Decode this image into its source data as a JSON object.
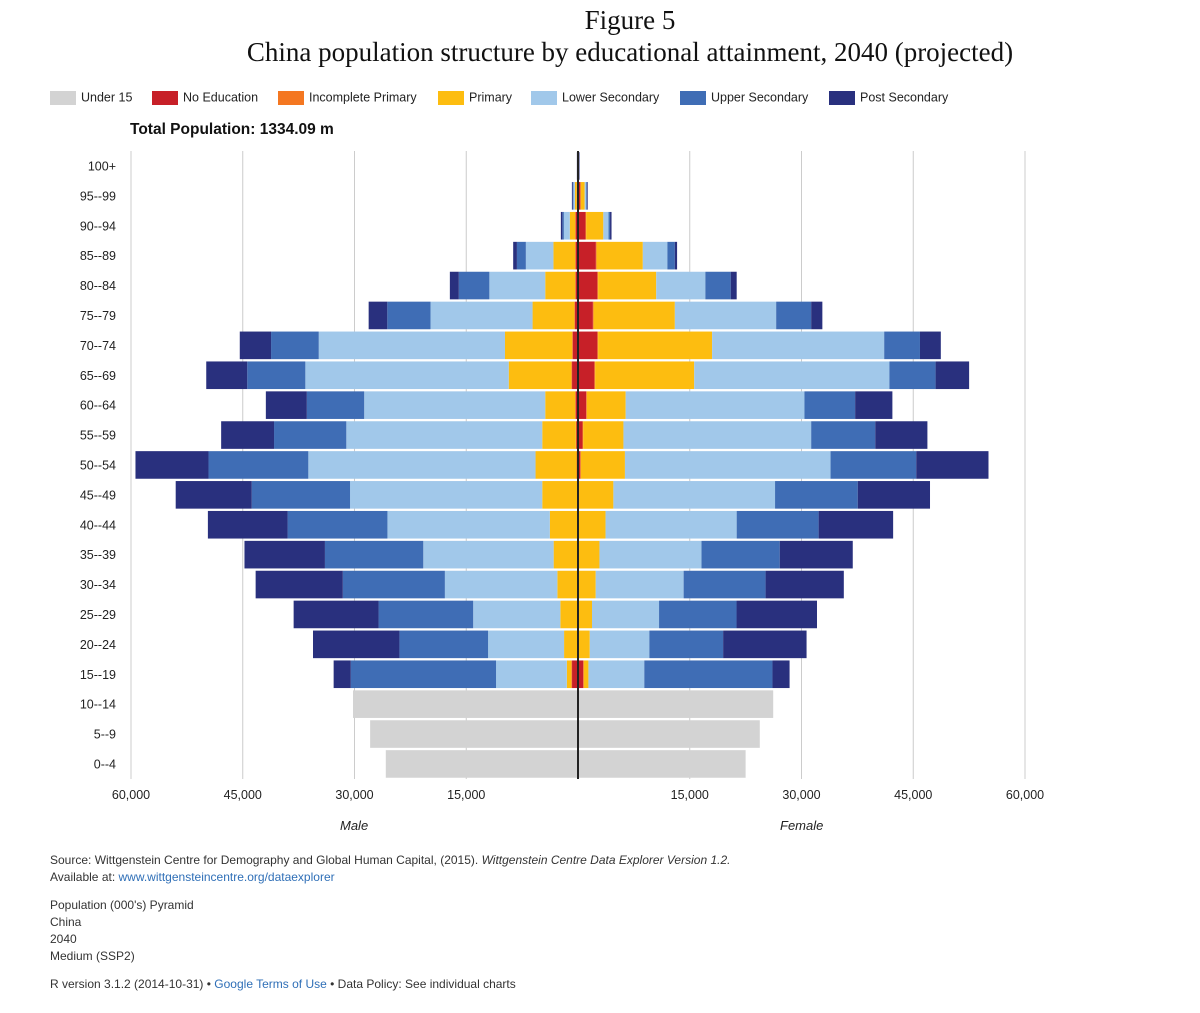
{
  "figure": {
    "number": "Figure 5",
    "title": "China population structure by educational attainment, 2040  (projected)"
  },
  "total_population": "Total Population: 1334.09 m",
  "sex_labels": {
    "male": "Male",
    "female": "Female"
  },
  "source": {
    "prefix": "Source: Wittgenstein Centre for Demography and Global Human Capital, (2015). ",
    "italic": "Wittgenstein Centre Data Explorer Version 1.2.",
    "available_label": "Available at: ",
    "link": "www.wittgensteincentre.org/dataexplorer",
    "details": [
      "Population (000's) Pyramid",
      "China",
      "2040",
      "Medium (SSP2)"
    ]
  },
  "footer": {
    "r_version": "R version 3.1.2 (2014-10-31)",
    "sep1": " • ",
    "google_terms": "Google Terms of Use",
    "sep2": " • ",
    "data_policy": "Data Policy: See individual charts"
  },
  "chart_data": {
    "type": "bar",
    "orientation": "horizontal-pyramid",
    "stacked": true,
    "units": "thousands",
    "xlim": [
      -60000,
      60000
    ],
    "x_ticks": [
      -60000,
      -45000,
      -30000,
      -15000,
      15000,
      30000,
      45000,
      60000
    ],
    "x_tick_labels": [
      "60,000",
      "45,000",
      "30,000",
      "15,000",
      "15,000",
      "30,000",
      "45,000",
      "60,000"
    ],
    "xlabel_left": "Male",
    "xlabel_right": "Female",
    "grid": true,
    "legend_position": "top",
    "categories": [
      "100+",
      "95--99",
      "90--94",
      "85--89",
      "80--84",
      "75--79",
      "70--74",
      "65--69",
      "60--64",
      "55--59",
      "50--54",
      "45--49",
      "40--44",
      "35--39",
      "30--34",
      "25--29",
      "20--24",
      "15--19",
      "10--14",
      "5--9",
      "0--4"
    ],
    "series": [
      {
        "name": "Under 15",
        "color": "#d3d3d3",
        "male": [
          0,
          0,
          0,
          0,
          0,
          0,
          0,
          0,
          0,
          0,
          0,
          0,
          0,
          0,
          0,
          0,
          0,
          0,
          30200,
          27900,
          25800
        ],
        "female": [
          0,
          0,
          0,
          0,
          0,
          0,
          0,
          0,
          0,
          0,
          0,
          0,
          0,
          0,
          0,
          0,
          0,
          0,
          26200,
          24400,
          22500
        ]
      },
      {
        "name": "No Education",
        "color": "#c72028",
        "male": [
          50,
          120,
          300,
          300,
          300,
          400,
          700,
          800,
          300,
          200,
          100,
          50,
          30,
          20,
          20,
          20,
          20,
          800,
          0,
          0,
          0
        ],
        "female": [
          100,
          300,
          1000,
          2400,
          2600,
          2000,
          2600,
          2200,
          1100,
          600,
          300,
          100,
          50,
          30,
          30,
          30,
          30,
          700,
          0,
          0,
          0
        ]
      },
      {
        "name": "Incomplete Primary",
        "color": "#f47721",
        "male": [
          0,
          50,
          100,
          100,
          100,
          100,
          100,
          100,
          100,
          100,
          100,
          50,
          50,
          50,
          50,
          50,
          50,
          100,
          0,
          0,
          0
        ],
        "female": [
          0,
          100,
          100,
          100,
          100,
          100,
          100,
          100,
          100,
          100,
          100,
          50,
          50,
          50,
          50,
          50,
          50,
          100,
          0,
          0,
          0
        ]
      },
      {
        "name": "Primary",
        "color": "#fdbd10",
        "male": [
          0,
          250,
          700,
          2900,
          4000,
          5600,
          9000,
          8400,
          4000,
          4500,
          5500,
          4700,
          3700,
          3200,
          2700,
          2300,
          1800,
          600,
          0,
          0,
          0
        ],
        "female": [
          0,
          500,
          2300,
          6200,
          7800,
          10900,
          15300,
          13300,
          5200,
          5400,
          5900,
          4600,
          3600,
          2800,
          2300,
          1800,
          1500,
          600,
          0,
          0,
          0
        ]
      },
      {
        "name": "Lower Secondary",
        "color": "#a1c8ea",
        "male": [
          0,
          200,
          800,
          3700,
          7500,
          13700,
          25000,
          27300,
          24300,
          26300,
          30500,
          25800,
          21800,
          17500,
          15100,
          11700,
          10200,
          9500,
          0,
          0,
          0
        ],
        "female": [
          0,
          200,
          700,
          3300,
          6600,
          13600,
          23100,
          26200,
          24000,
          25200,
          27600,
          21700,
          17600,
          13700,
          11800,
          9000,
          8000,
          7500,
          0,
          0,
          0
        ]
      },
      {
        "name": "Upper Secondary",
        "color": "#3f6db5",
        "male": [
          0,
          100,
          200,
          1200,
          4100,
          5800,
          6400,
          7800,
          7700,
          9700,
          13400,
          13200,
          13400,
          13200,
          13700,
          12700,
          11900,
          19500,
          0,
          0,
          0
        ],
        "female": [
          0,
          100,
          200,
          1000,
          3400,
          4700,
          4800,
          6200,
          6800,
          8600,
          11500,
          11100,
          11000,
          10500,
          11000,
          10400,
          9900,
          17200,
          0,
          0,
          0
        ]
      },
      {
        "name": "Post Secondary",
        "color": "#29307e",
        "male": [
          100,
          100,
          200,
          500,
          1200,
          2500,
          4200,
          5500,
          5500,
          7100,
          9800,
          10200,
          10700,
          10800,
          11700,
          11400,
          11600,
          2300,
          0,
          0,
          0
        ],
        "female": [
          100,
          100,
          200,
          300,
          800,
          1500,
          2800,
          4500,
          5000,
          7000,
          9700,
          9700,
          10000,
          9800,
          10500,
          10800,
          11200,
          2300,
          0,
          0,
          0
        ]
      }
    ]
  }
}
